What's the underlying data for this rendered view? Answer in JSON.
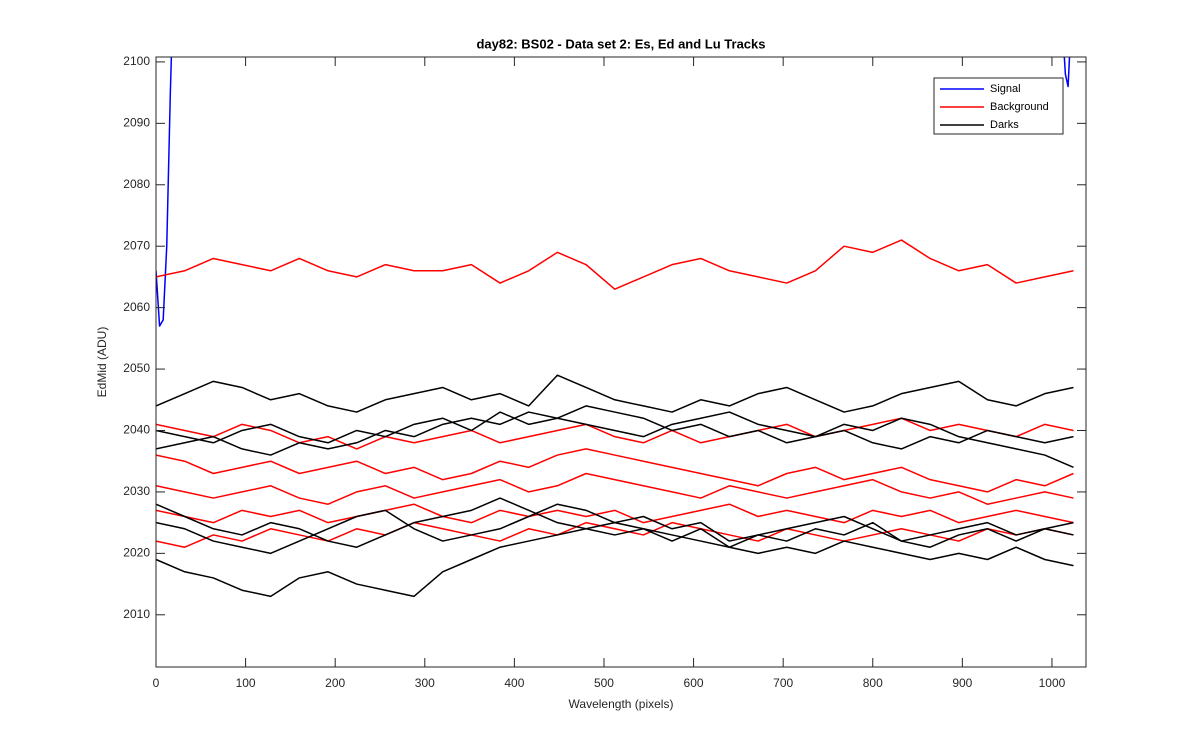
{
  "chart_data": {
    "type": "line",
    "title": "day82: BS02 - Data set 2: Es, Ed and Lu Tracks",
    "xlabel": "Wavelength (pixels)",
    "ylabel": "EdMid (ADU)",
    "xlim": [
      0,
      1038
    ],
    "ylim": [
      2001.5,
      2100.8
    ],
    "xticks": [
      0,
      100,
      200,
      300,
      400,
      500,
      600,
      700,
      800,
      900,
      1000
    ],
    "yticks": [
      2010,
      2020,
      2030,
      2040,
      2050,
      2060,
      2070,
      2080,
      2090,
      2100
    ],
    "legend_position": "upper right",
    "x": [
      0,
      32,
      64,
      96,
      128,
      160,
      192,
      224,
      256,
      288,
      320,
      352,
      384,
      416,
      448,
      480,
      512,
      544,
      576,
      608,
      640,
      672,
      704,
      736,
      768,
      800,
      832,
      864,
      896,
      928,
      960,
      992,
      1024
    ],
    "series": [
      {
        "name": "Signal",
        "color": "#0000ff",
        "x": [
          0,
          4,
          8,
          12,
          16,
          18,
          1012,
          1015,
          1018,
          1021
        ],
        "values": [
          2066,
          2057,
          2058,
          2070,
          2095,
          2105,
          2105,
          2098,
          2096,
          2105
        ]
      },
      {
        "name": "Background",
        "color": "#ff0000",
        "values": [
          2065,
          2066,
          2068,
          2067,
          2066,
          2068,
          2066,
          2065,
          2067,
          2066,
          2066,
          2067,
          2064,
          2066,
          2069,
          2067,
          2063,
          2065,
          2067,
          2068,
          2066,
          2065,
          2064,
          2066,
          2070,
          2069,
          2071,
          2068,
          2066,
          2067,
          2064,
          2065,
          2066
        ]
      },
      {
        "name": "Background",
        "color": "#ff0000",
        "values": [
          2041,
          2040,
          2039,
          2041,
          2040,
          2038,
          2039,
          2037,
          2039,
          2038,
          2039,
          2040,
          2038,
          2039,
          2040,
          2041,
          2039,
          2038,
          2040,
          2038,
          2039,
          2040,
          2041,
          2039,
          2040,
          2041,
          2042,
          2040,
          2041,
          2040,
          2039,
          2041,
          2040
        ]
      },
      {
        "name": "Background",
        "color": "#ff0000",
        "values": [
          2036,
          2035,
          2033,
          2034,
          2035,
          2033,
          2034,
          2035,
          2033,
          2034,
          2032,
          2033,
          2035,
          2034,
          2036,
          2037,
          2036,
          2035,
          2034,
          2033,
          2032,
          2031,
          2033,
          2034,
          2032,
          2033,
          2034,
          2032,
          2031,
          2030,
          2032,
          2031,
          2033
        ]
      },
      {
        "name": "Background",
        "color": "#ff0000",
        "values": [
          2031,
          2030,
          2029,
          2030,
          2031,
          2029,
          2028,
          2030,
          2031,
          2029,
          2030,
          2031,
          2032,
          2030,
          2031,
          2033,
          2032,
          2031,
          2030,
          2029,
          2031,
          2030,
          2029,
          2030,
          2031,
          2032,
          2030,
          2029,
          2030,
          2028,
          2029,
          2030,
          2029
        ]
      },
      {
        "name": "Background",
        "color": "#ff0000",
        "values": [
          2027,
          2026,
          2025,
          2027,
          2026,
          2027,
          2025,
          2026,
          2027,
          2028,
          2026,
          2025,
          2027,
          2026,
          2027,
          2026,
          2027,
          2025,
          2026,
          2027,
          2028,
          2026,
          2027,
          2026,
          2025,
          2027,
          2026,
          2027,
          2025,
          2026,
          2027,
          2026,
          2025
        ]
      },
      {
        "name": "Background",
        "color": "#ff0000",
        "values": [
          2022,
          2021,
          2023,
          2022,
          2024,
          2023,
          2022,
          2024,
          2023,
          2025,
          2024,
          2023,
          2022,
          2024,
          2023,
          2025,
          2024,
          2023,
          2025,
          2024,
          2023,
          2022,
          2024,
          2023,
          2022,
          2023,
          2024,
          2023,
          2022,
          2024,
          2023,
          2024,
          2023
        ]
      },
      {
        "name": "Darks",
        "color": "#000000",
        "values": [
          2044,
          2046,
          2048,
          2047,
          2045,
          2046,
          2044,
          2043,
          2045,
          2046,
          2047,
          2045,
          2046,
          2044,
          2049,
          2047,
          2045,
          2044,
          2043,
          2045,
          2044,
          2046,
          2047,
          2045,
          2043,
          2044,
          2046,
          2047,
          2048,
          2045,
          2044,
          2046,
          2047
        ]
      },
      {
        "name": "Darks",
        "color": "#000000",
        "values": [
          2040,
          2039,
          2038,
          2040,
          2041,
          2039,
          2038,
          2040,
          2039,
          2041,
          2042,
          2040,
          2043,
          2041,
          2042,
          2044,
          2043,
          2042,
          2040,
          2041,
          2039,
          2040,
          2038,
          2039,
          2040,
          2038,
          2037,
          2039,
          2038,
          2040,
          2039,
          2038,
          2039
        ]
      },
      {
        "name": "Darks",
        "color": "#000000",
        "values": [
          2037,
          2038,
          2039,
          2037,
          2036,
          2038,
          2037,
          2038,
          2040,
          2039,
          2041,
          2042,
          2041,
          2043,
          2042,
          2041,
          2040,
          2039,
          2041,
          2042,
          2043,
          2041,
          2040,
          2039,
          2041,
          2040,
          2042,
          2041,
          2039,
          2038,
          2037,
          2036,
          2034
        ]
      },
      {
        "name": "Darks",
        "color": "#000000",
        "values": [
          2028,
          2026,
          2024,
          2023,
          2025,
          2024,
          2022,
          2021,
          2023,
          2025,
          2026,
          2027,
          2029,
          2027,
          2025,
          2024,
          2023,
          2024,
          2022,
          2024,
          2021,
          2023,
          2022,
          2024,
          2023,
          2025,
          2022,
          2021,
          2023,
          2024,
          2022,
          2024,
          2025
        ]
      },
      {
        "name": "Darks",
        "color": "#000000",
        "values": [
          2025,
          2024,
          2022,
          2021,
          2020,
          2022,
          2024,
          2026,
          2027,
          2024,
          2022,
          2023,
          2024,
          2026,
          2028,
          2027,
          2025,
          2026,
          2024,
          2025,
          2022,
          2023,
          2024,
          2025,
          2026,
          2024,
          2022,
          2023,
          2024,
          2025,
          2023,
          2024,
          2023
        ]
      },
      {
        "name": "Darks",
        "color": "#000000",
        "values": [
          2019,
          2017,
          2016,
          2014,
          2013,
          2016,
          2017,
          2015,
          2014,
          2013,
          2017,
          2019,
          2021,
          2022,
          2023,
          2024,
          2025,
          2024,
          2023,
          2022,
          2021,
          2020,
          2021,
          2020,
          2022,
          2021,
          2020,
          2019,
          2020,
          2019,
          2021,
          2019,
          2018
        ]
      }
    ]
  }
}
